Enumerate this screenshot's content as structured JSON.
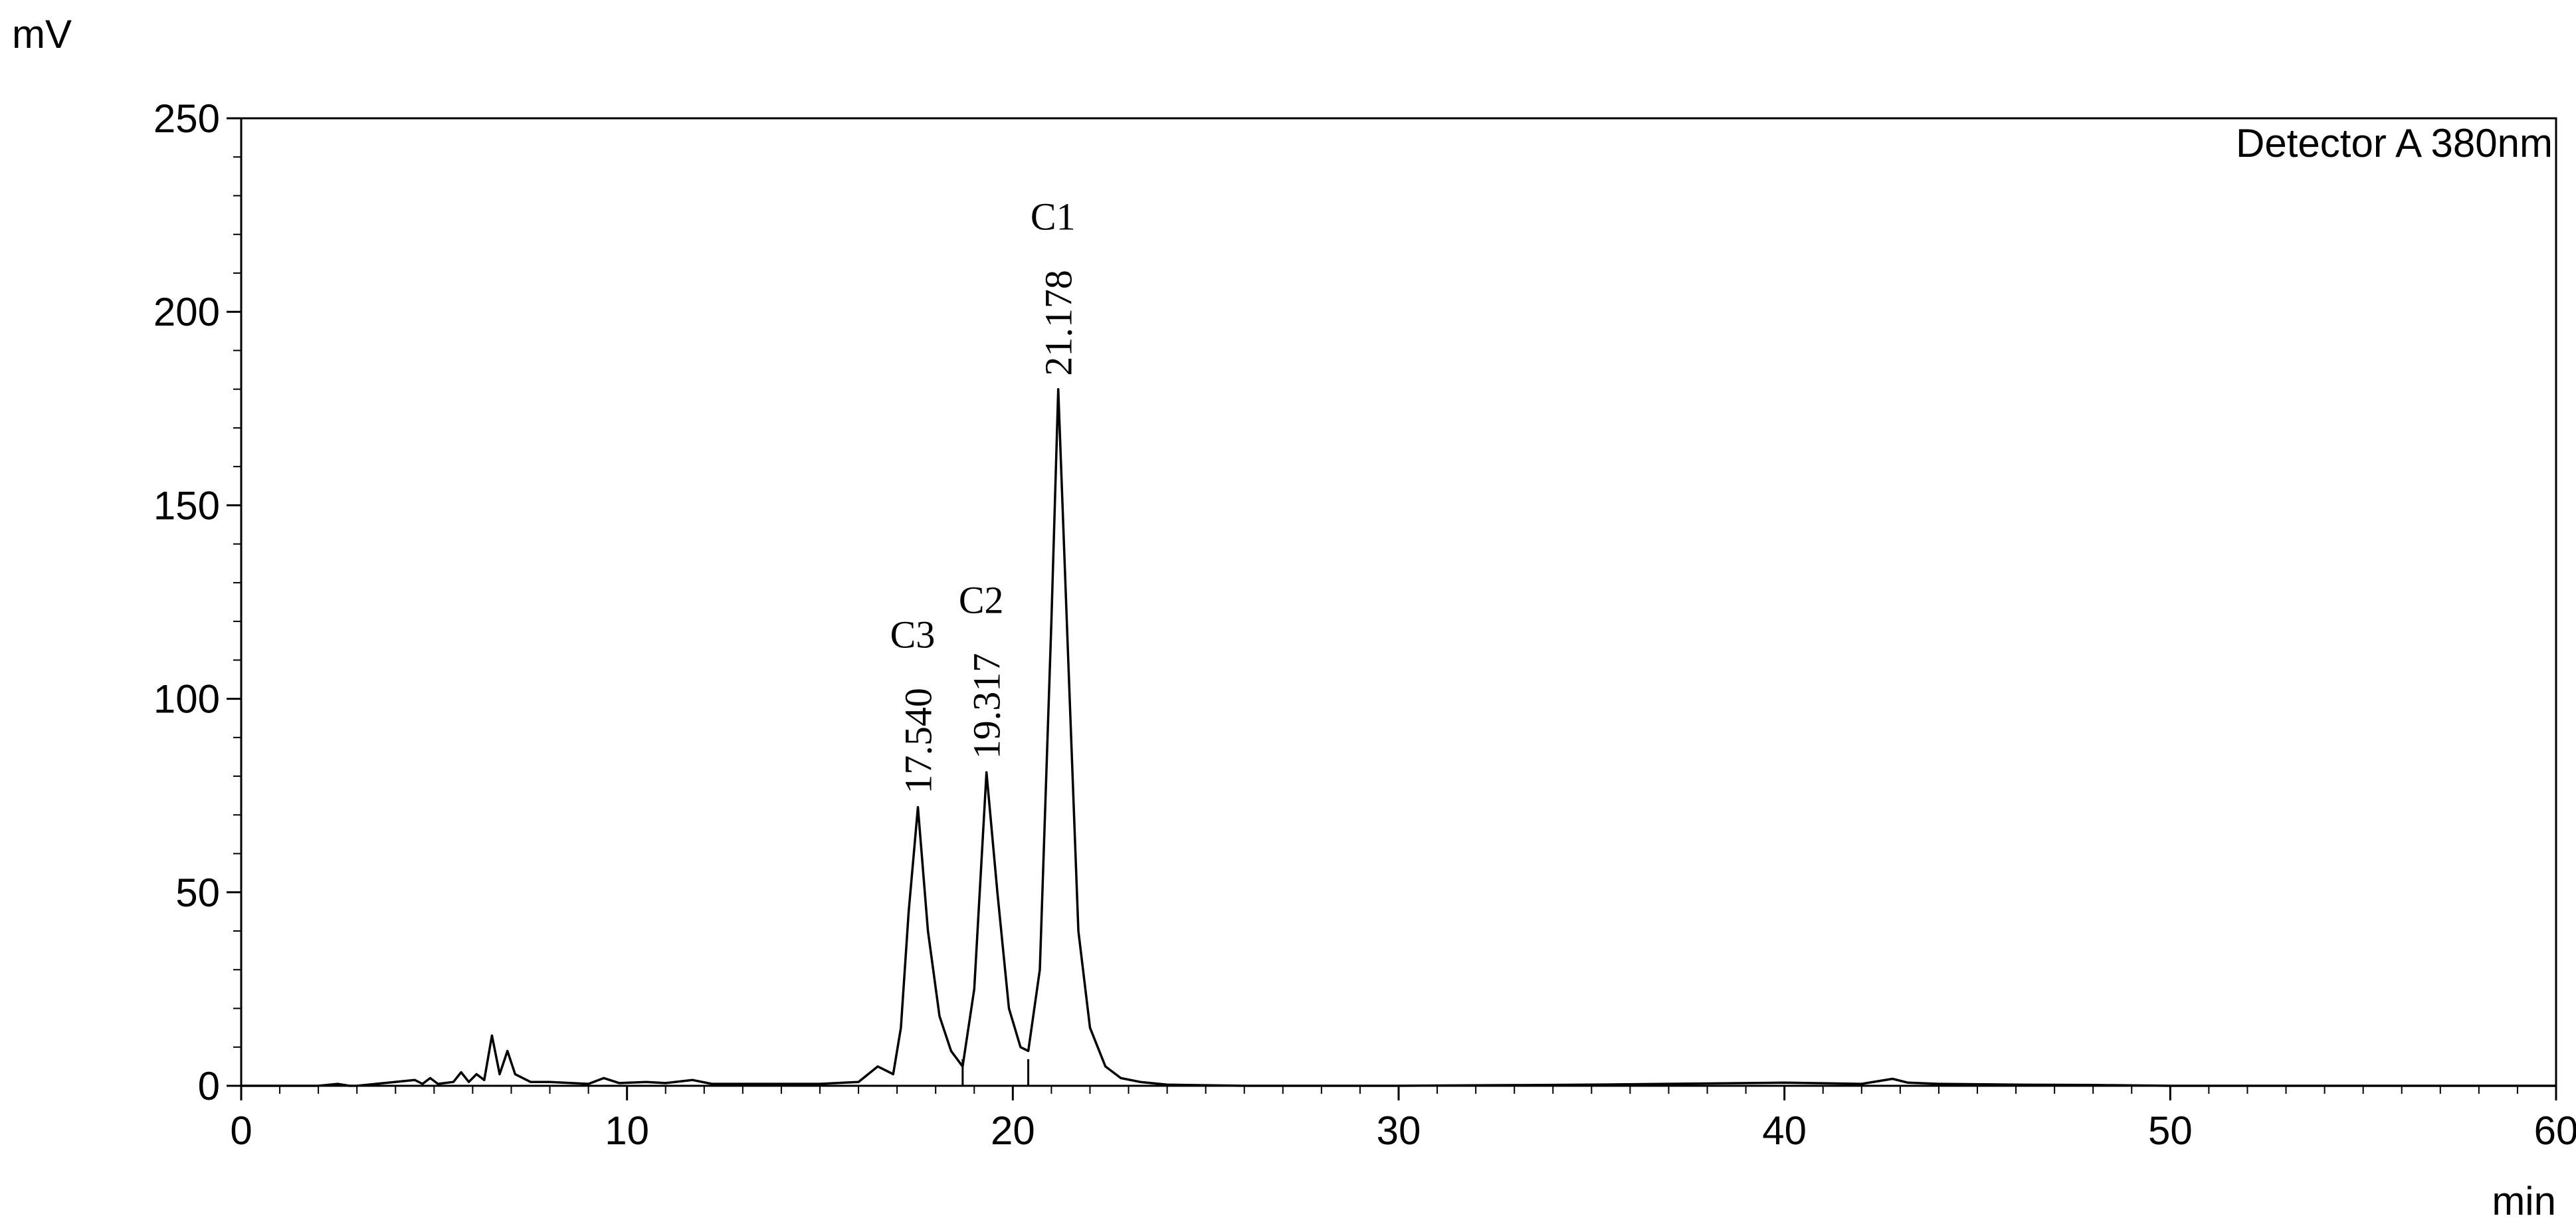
{
  "chart_data": {
    "type": "line",
    "y_label": "mV",
    "x_label": "min",
    "annotation": "Detector A 380nm",
    "xlim": [
      0,
      60
    ],
    "xticks": [
      0,
      10,
      20,
      30,
      40,
      50,
      60
    ],
    "ylim": [
      0,
      250
    ],
    "yticks": [
      0,
      50,
      100,
      150,
      200,
      250
    ],
    "x": [
      0,
      2,
      2.5,
      2.8,
      3,
      4.5,
      4.7,
      4.9,
      5.1,
      5.5,
      5.7,
      5.9,
      6.1,
      6.3,
      6.5,
      6.7,
      6.9,
      7.1,
      7.5,
      8,
      9,
      9.4,
      9.8,
      10.5,
      11,
      11.7,
      12.2,
      13,
      14,
      15,
      16,
      16.5,
      16.7,
      16.9,
      17.1,
      17.3,
      17.54,
      17.8,
      18.1,
      18.4,
      18.7,
      19.0,
      19.317,
      19.6,
      19.9,
      20.2,
      20.4,
      20.7,
      21.0,
      21.178,
      21.4,
      21.7,
      22.0,
      22.4,
      22.8,
      23.3,
      24,
      26,
      30,
      35,
      38,
      40,
      42,
      42.8,
      43.2,
      44,
      46,
      48,
      50,
      55,
      60
    ],
    "series": [
      {
        "color": "#000000",
        "values": [
          0,
          0,
          0.5,
          0,
          0,
          1.5,
          0.5,
          2,
          0.5,
          1,
          3.5,
          1,
          3,
          1.5,
          13,
          3,
          9,
          3,
          1,
          1,
          0.5,
          2,
          0.7,
          1,
          0.7,
          1.5,
          0.5,
          0.5,
          0.5,
          0.5,
          1,
          5,
          4,
          3,
          15,
          45,
          72,
          40,
          18,
          9,
          5,
          25,
          81,
          50,
          20,
          10,
          9,
          30,
          120,
          180,
          120,
          40,
          15,
          5,
          2,
          1,
          0.3,
          0,
          0,
          0.3,
          0.6,
          0.8,
          0.5,
          1.8,
          0.8,
          0.5,
          0.3,
          0.2,
          0,
          0,
          0
        ]
      }
    ],
    "integration_marks": [
      18.7,
      20.4
    ],
    "peaks": [
      {
        "label": "C3",
        "retention_time": {
          "value": 17.54,
          "label": "17.540"
        },
        "height": 72
      },
      {
        "label": "C2",
        "retention_time": {
          "value": 19.317,
          "label": "19.317"
        },
        "height": 81
      },
      {
        "label": "C1",
        "retention_time": {
          "value": 21.178,
          "label": "21.178"
        },
        "height": 180
      }
    ]
  }
}
